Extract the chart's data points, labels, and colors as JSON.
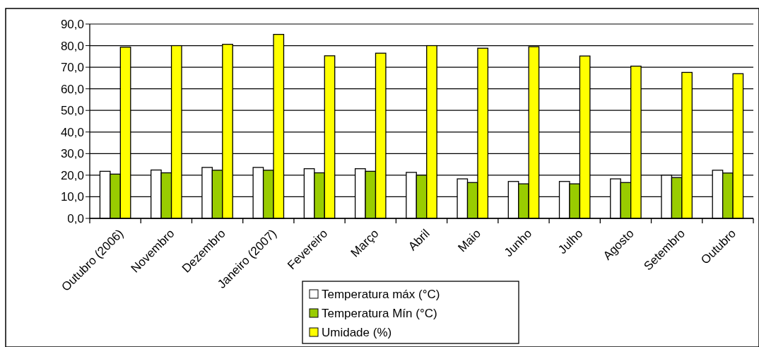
{
  "chart_data": {
    "type": "bar",
    "categories": [
      "Outubro (2006)",
      "Novembro",
      "Dezembro",
      "Janeiro (2007)",
      "Fevereiro",
      "Março",
      "Abril",
      "Maio",
      "Junho",
      "Julho",
      "Agosto",
      "Setembro",
      "Outubro"
    ],
    "series": [
      {
        "name": "Temperatura máx (°C)",
        "color": "#ffffff",
        "values": [
          21.8,
          22.4,
          23.6,
          23.6,
          23.0,
          23.0,
          21.3,
          18.3,
          17.1,
          17.1,
          18.3,
          20.0,
          22.3
        ]
      },
      {
        "name": "Temperatura Mín (°C)",
        "color": "#99cc00",
        "values": [
          20.5,
          21.1,
          22.3,
          22.3,
          21.1,
          21.8,
          20.0,
          16.6,
          16.0,
          16.0,
          16.6,
          18.9,
          21.0
        ]
      },
      {
        "name": "Umidade (%)",
        "color": "#ffff00",
        "values": [
          79.3,
          80.0,
          80.6,
          85.2,
          75.3,
          76.5,
          80.0,
          78.8,
          79.5,
          75.2,
          70.5,
          67.6,
          67.0
        ]
      }
    ],
    "ylim": [
      0,
      90
    ],
    "yticks": [
      {
        "value": 0,
        "label": "0,0"
      },
      {
        "value": 10,
        "label": "10,0"
      },
      {
        "value": 20,
        "label": "20,0"
      },
      {
        "value": 30,
        "label": "30,0"
      },
      {
        "value": 40,
        "label": "40,0"
      },
      {
        "value": 50,
        "label": "50,0"
      },
      {
        "value": 60,
        "label": "60,0"
      },
      {
        "value": 70,
        "label": "70,0"
      },
      {
        "value": 80,
        "label": "80,0"
      },
      {
        "value": 90,
        "label": "90,0"
      }
    ],
    "grid": "y",
    "legend": "bottom"
  }
}
